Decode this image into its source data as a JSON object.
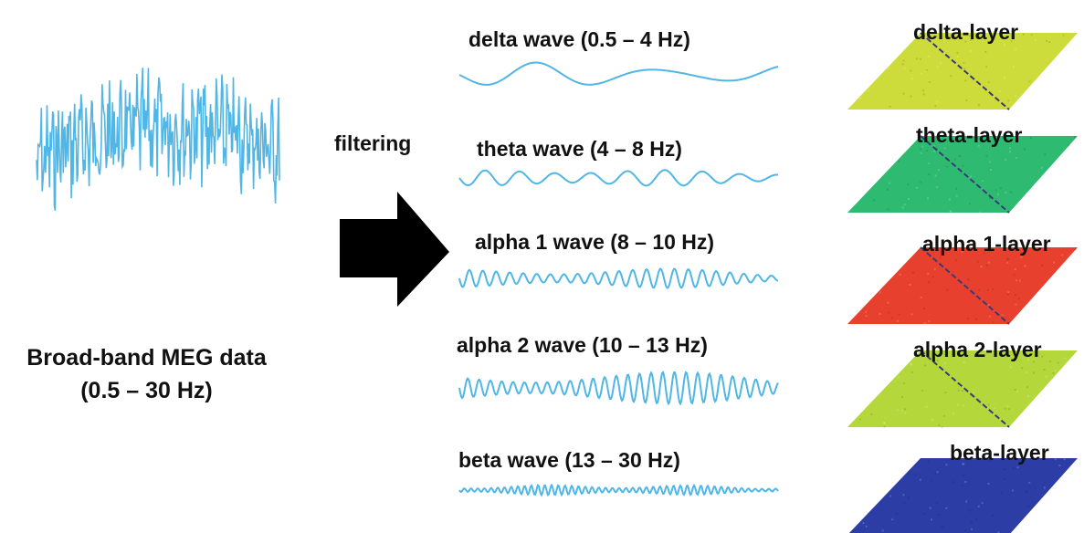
{
  "broadband": {
    "line1": "Broad-band MEG data",
    "line2": "(0.5 – 30 Hz)",
    "color": "#4fb6e6"
  },
  "process": {
    "label": "filtering",
    "arrow_color": "#000000",
    "arrow_icon": "right-arrow-icon"
  },
  "waves": [
    {
      "title": "delta wave (0.5 – 4 Hz)",
      "color": "#4fb6e6"
    },
    {
      "title": "theta wave (4 – 8 Hz)",
      "color": "#4fb6e6"
    },
    {
      "title": "alpha 1 wave (8 – 10 Hz)",
      "color": "#4fb6e6"
    },
    {
      "title": "alpha 2 wave (10 – 13 Hz)",
      "color": "#4fb6e6"
    },
    {
      "title": "beta wave (13 – 30 Hz)",
      "color": "#4fb6e6"
    }
  ],
  "layers": [
    {
      "title": "delta-layer",
      "color": "#cddc3a",
      "diagonal": true
    },
    {
      "title": "theta-layer",
      "color": "#2fba72",
      "diagonal": true
    },
    {
      "title": "alpha 1-layer",
      "color": "#e8402e",
      "diagonal": true
    },
    {
      "title": "alpha 2-layer",
      "color": "#b4d83c",
      "diagonal": true
    },
    {
      "title": "beta-layer",
      "color": "#2c3ea6",
      "diagonal": false
    }
  ]
}
